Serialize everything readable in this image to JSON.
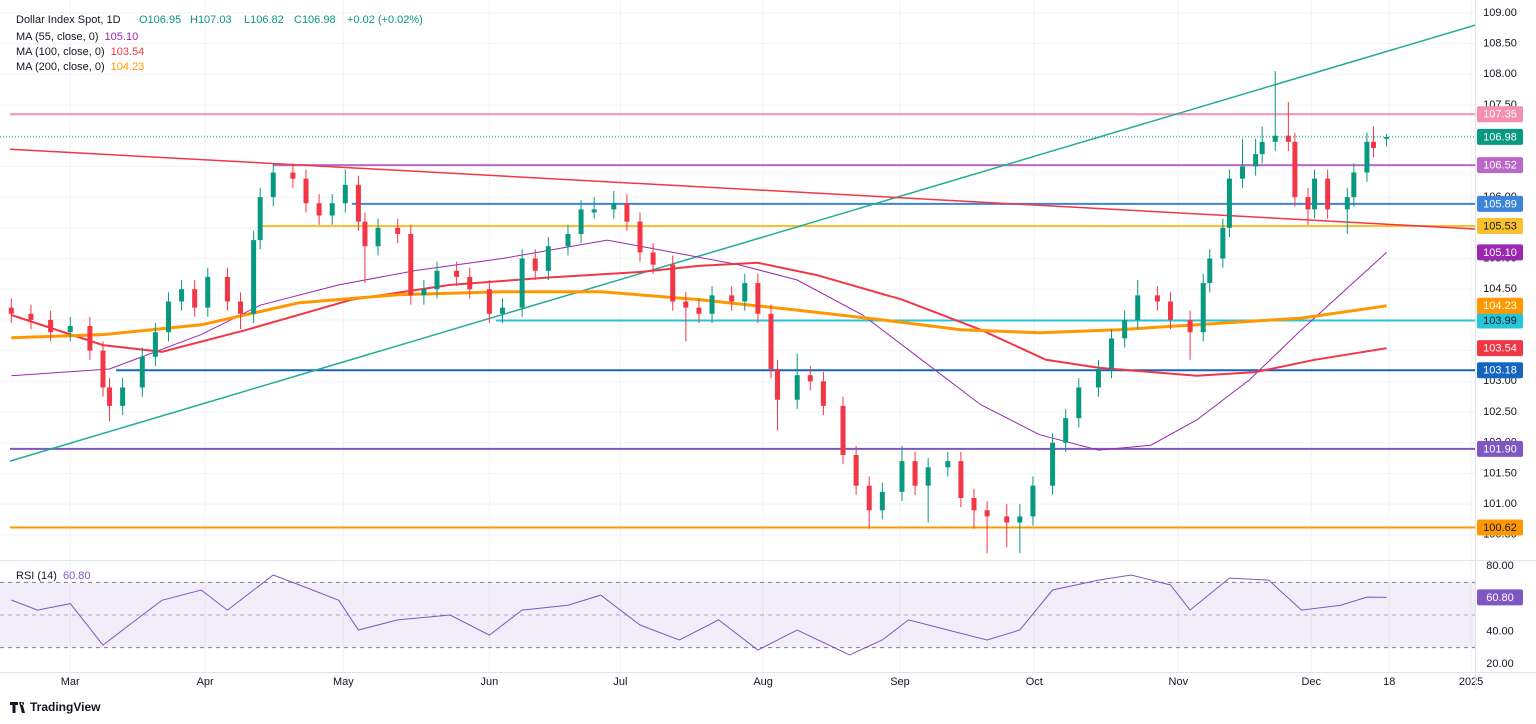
{
  "header": {
    "title": "Dollar Index Spot, 1D",
    "ohlc": [
      "O106.95",
      "H107.03",
      "L106.82",
      "C106.98",
      "+0.02 (+0.02%)"
    ]
  },
  "branding": "TradingView",
  "chart_data": [
    {
      "type": "candlestick",
      "up_color": "#089981",
      "down_color": "#f23645",
      "xlim": [
        -9.2,
        214.5
      ],
      "ylim": [
        100.09,
        109.21
      ],
      "grid": true,
      "xticks": [
        {
          "value": 0,
          "label": "Mar"
        },
        {
          "value": 20.6,
          "label": "Apr"
        },
        {
          "value": 41.7,
          "label": "May"
        },
        {
          "value": 64,
          "label": "Jun"
        },
        {
          "value": 84,
          "label": "Jul"
        },
        {
          "value": 105.8,
          "label": "Aug"
        },
        {
          "value": 126.7,
          "label": "Sep"
        },
        {
          "value": 147.2,
          "label": "Oct"
        },
        {
          "value": 169.2,
          "label": "Nov"
        },
        {
          "value": 189.5,
          "label": "Dec"
        },
        {
          "value": 201.4,
          "label": "18"
        },
        {
          "value": 213.9,
          "label": "2025"
        }
      ],
      "yticks": [
        {
          "value": 100.5,
          "label": "100.50"
        },
        {
          "value": 101,
          "label": "101.00"
        },
        {
          "value": 101.5,
          "label": "101.50"
        },
        {
          "value": 102,
          "label": "102.00"
        },
        {
          "value": 102.5,
          "label": "102.50"
        },
        {
          "value": 103,
          "label": "103.00"
        },
        {
          "value": 103.5,
          "label": "103.50"
        },
        {
          "value": 104,
          "label": "104.00"
        },
        {
          "value": 104.5,
          "label": "104.50"
        },
        {
          "value": 105,
          "label": "105.00"
        },
        {
          "value": 105.5,
          "label": "105.50"
        },
        {
          "value": 106,
          "label": "106.00"
        },
        {
          "value": 106.5,
          "label": "106.50"
        },
        {
          "value": 107,
          "label": "107.00"
        },
        {
          "value": 107.5,
          "label": "107.50"
        },
        {
          "value": 108,
          "label": "108.00"
        },
        {
          "value": 108.5,
          "label": "108.50"
        },
        {
          "value": 109,
          "label": "109.00"
        }
      ],
      "x": [
        -9,
        -6,
        -3,
        0,
        3,
        5,
        6,
        8,
        11,
        13,
        15,
        17,
        19,
        21,
        24,
        26,
        28,
        29,
        31,
        34,
        36,
        38,
        40,
        42,
        44,
        45,
        47,
        50,
        52,
        54,
        56,
        59,
        61,
        64,
        66,
        69,
        71,
        73,
        76,
        78,
        80,
        83,
        85,
        87,
        89,
        92,
        94,
        96,
        98,
        101,
        103,
        105,
        107,
        108,
        111,
        113,
        115,
        118,
        120,
        122,
        124,
        127,
        129,
        131,
        134,
        136,
        138,
        140,
        143,
        145,
        147,
        150,
        152,
        154,
        157,
        159,
        161,
        163,
        166,
        168,
        171,
        173,
        174,
        176,
        177,
        179,
        181,
        182,
        184,
        186,
        187,
        189,
        190,
        192,
        195,
        196,
        198,
        199,
        201
      ],
      "open": [
        104.2,
        104.1,
        104.0,
        103.8,
        103.9,
        103.5,
        102.9,
        102.6,
        102.9,
        103.4,
        103.8,
        104.3,
        104.5,
        104.2,
        104.7,
        104.3,
        104.1,
        105.3,
        106.0,
        106.4,
        106.3,
        105.9,
        105.7,
        105.9,
        106.2,
        105.6,
        105.2,
        105.5,
        105.4,
        104.4,
        104.5,
        104.8,
        104.7,
        104.5,
        104.1,
        104.2,
        105.0,
        104.8,
        105.2,
        105.4,
        105.75,
        105.8,
        105.9,
        105.6,
        105.1,
        104.9,
        104.3,
        104.2,
        104.1,
        104.4,
        104.3,
        104.6,
        104.1,
        103.2,
        102.7,
        103.1,
        103.0,
        102.6,
        101.8,
        101.3,
        100.9,
        101.2,
        101.7,
        101.3,
        101.6,
        101.7,
        101.1,
        100.9,
        100.8,
        100.7,
        100.8,
        101.3,
        102.0,
        102.4,
        102.9,
        103.2,
        103.7,
        104.0,
        104.4,
        104.3,
        104.0,
        103.8,
        104.6,
        105.0,
        105.5,
        106.3,
        106.5,
        106.7,
        106.9,
        107.0,
        106.9,
        106.0,
        105.8,
        106.3,
        105.8,
        106.0,
        106.4,
        106.9,
        106.95
      ],
      "high": [
        104.35,
        104.25,
        104.15,
        104.05,
        104.05,
        103.65,
        103.05,
        103.05,
        103.55,
        103.95,
        104.45,
        104.65,
        104.65,
        104.85,
        104.85,
        104.45,
        105.45,
        106.15,
        106.55,
        106.55,
        106.45,
        106.05,
        106.05,
        106.45,
        106.35,
        105.75,
        105.65,
        105.65,
        105.55,
        104.65,
        104.95,
        104.95,
        104.85,
        104.65,
        104.35,
        105.15,
        105.15,
        105.35,
        105.55,
        105.95,
        106.0,
        106.1,
        106.05,
        105.75,
        105.25,
        105.05,
        104.45,
        104.35,
        104.55,
        104.55,
        104.75,
        104.75,
        104.25,
        103.35,
        103.45,
        103.25,
        103.15,
        102.75,
        101.95,
        101.45,
        101.35,
        101.95,
        101.85,
        101.75,
        101.85,
        101.85,
        101.25,
        101.05,
        101.0,
        101.0,
        101.45,
        102.15,
        102.55,
        103.05,
        103.35,
        103.85,
        104.15,
        104.65,
        104.55,
        104.45,
        104.15,
        104.75,
        105.15,
        105.65,
        106.45,
        106.95,
        106.95,
        107.15,
        108.05,
        107.55,
        107.05,
        106.15,
        106.45,
        106.45,
        106.15,
        106.55,
        107.05,
        107.15,
        107.03
      ],
      "low": [
        103.95,
        103.85,
        103.65,
        103.65,
        103.35,
        102.75,
        102.35,
        102.45,
        102.75,
        103.25,
        103.65,
        104.15,
        104.05,
        104.05,
        104.15,
        103.85,
        103.95,
        105.15,
        105.85,
        106.15,
        105.75,
        105.55,
        105.55,
        105.75,
        105.45,
        104.6,
        105.05,
        105.25,
        104.25,
        104.25,
        104.35,
        104.55,
        104.35,
        103.95,
        103.95,
        104.05,
        104.65,
        104.65,
        105.05,
        105.25,
        105.65,
        105.65,
        105.45,
        104.95,
        104.75,
        104.15,
        103.65,
        103.95,
        103.95,
        104.15,
        104.15,
        103.95,
        103.05,
        102.2,
        102.55,
        102.85,
        102.45,
        101.65,
        101.15,
        100.6,
        100.75,
        101.05,
        101.15,
        100.7,
        101.45,
        100.95,
        100.6,
        100.2,
        100.3,
        100.2,
        100.65,
        101.15,
        101.85,
        102.25,
        102.75,
        103.05,
        103.55,
        103.85,
        104.15,
        103.85,
        103.35,
        103.65,
        104.45,
        104.85,
        105.35,
        106.15,
        106.35,
        106.55,
        106.75,
        106.75,
        105.85,
        105.55,
        105.65,
        105.65,
        105.4,
        105.85,
        106.25,
        106.65,
        106.82
      ],
      "close": [
        104.1,
        104.0,
        103.8,
        103.9,
        103.5,
        102.9,
        102.6,
        102.9,
        103.4,
        103.8,
        104.3,
        104.5,
        104.2,
        104.7,
        104.3,
        104.1,
        105.3,
        106.0,
        106.4,
        106.3,
        105.9,
        105.7,
        105.9,
        106.2,
        105.6,
        105.2,
        105.5,
        105.4,
        104.4,
        104.5,
        104.8,
        104.7,
        104.5,
        104.1,
        104.2,
        105.0,
        104.8,
        105.2,
        105.4,
        105.8,
        105.8,
        105.9,
        105.6,
        105.1,
        104.9,
        104.3,
        104.2,
        104.1,
        104.4,
        104.3,
        104.6,
        104.1,
        103.2,
        102.7,
        103.1,
        103.0,
        102.6,
        101.8,
        101.3,
        100.9,
        101.2,
        101.7,
        101.3,
        101.6,
        101.7,
        101.1,
        100.9,
        100.8,
        100.7,
        100.8,
        101.3,
        102.0,
        102.4,
        102.9,
        103.2,
        103.7,
        104.0,
        104.4,
        104.3,
        104.0,
        103.8,
        104.6,
        105.0,
        105.5,
        106.3,
        106.5,
        106.7,
        106.9,
        107.0,
        106.9,
        106.0,
        105.8,
        106.3,
        105.8,
        106.0,
        106.4,
        106.9,
        106.8,
        106.98
      ],
      "series": [
        {
          "name": "MA (55, close, 0)",
          "color": "#9c27b0",
          "width": 1,
          "x": [
            -9,
            6,
            20,
            29,
            41,
            53,
            66,
            75,
            82,
            90,
            102,
            111,
            121,
            130,
            139,
            148,
            157,
            165,
            172,
            180,
            188,
            201
          ],
          "values": [
            103.09,
            103.2,
            103.76,
            104.24,
            104.57,
            104.81,
            105.0,
            105.17,
            105.3,
            105.14,
            104.9,
            104.65,
            104.08,
            103.35,
            102.62,
            102.13,
            101.88,
            101.96,
            102.37,
            103.02,
            103.84,
            105.1
          ],
          "last": {
            "value": 105.1,
            "label": "105.10"
          }
        },
        {
          "name": "MA (100, close, 0)",
          "color": "#f23645",
          "width": 2,
          "x": [
            -9,
            5,
            14,
            27,
            43,
            58,
            73,
            87,
            96,
            105,
            114,
            127,
            139,
            149,
            157,
            172,
            181,
            190,
            201
          ],
          "values": [
            104.08,
            103.59,
            103.48,
            103.84,
            104.33,
            104.57,
            104.69,
            104.78,
            104.88,
            104.93,
            104.73,
            104.33,
            103.84,
            103.35,
            103.22,
            103.09,
            103.15,
            103.35,
            103.54
          ],
          "last": {
            "value": 103.54,
            "label": "103.54"
          }
        },
        {
          "name": "MA (200, close, 0)",
          "color": "#ff9800",
          "width": 3,
          "x": [
            -9,
            5,
            20,
            35,
            50,
            66,
            81,
            96,
            111,
            124,
            136,
            148,
            160,
            172,
            188,
            201
          ],
          "values": [
            103.71,
            103.76,
            103.92,
            104.28,
            104.41,
            104.46,
            104.46,
            104.33,
            104.16,
            104.0,
            103.84,
            103.79,
            103.84,
            103.92,
            104.03,
            104.23
          ],
          "last": {
            "value": 104.23,
            "label": "104.23"
          }
        }
      ],
      "trendlines": [
        {
          "color": "#22ab94",
          "x": [
            -9.2,
            214.5
          ],
          "y": [
            101.7,
            108.8
          ]
        },
        {
          "color": "#f23645",
          "x": [
            -9.2,
            214.5
          ],
          "y": [
            106.78,
            105.48
          ]
        }
      ],
      "levels": [
        {
          "value": 107.35,
          "color": "#f48fb1",
          "text_color": "#ffffff",
          "start": -9.2
        },
        {
          "value": 106.52,
          "color": "#ba68c8",
          "text_color": "#ffffff",
          "start": 31
        },
        {
          "value": 105.89,
          "color": "#3d85d8",
          "text_color": "#ffffff",
          "start": 43
        },
        {
          "value": 105.53,
          "color": "#fbc02d",
          "text_color": "#131722",
          "start": 29
        },
        {
          "value": 103.99,
          "color": "#26c6da",
          "text_color": "#131722",
          "start": 65
        },
        {
          "value": 103.18,
          "color": "#1565c0",
          "text_color": "#ffffff",
          "start": 7
        },
        {
          "value": 101.9,
          "value_label": "101.90",
          "color": "#7e57c2",
          "text_color": "#ffffff",
          "start": -9.2
        },
        {
          "value": 100.62,
          "color": "#ff9800",
          "text_color": "#131722",
          "start": -9.2
        }
      ],
      "last_price": {
        "value": 106.98,
        "color": "#089981"
      }
    },
    {
      "type": "line",
      "xlim": [
        -9.2,
        214.5
      ],
      "ylim": [
        15.1,
        83.7
      ],
      "yticks": [
        {
          "value": 20,
          "label": "20.00"
        },
        {
          "value": 40,
          "label": "40.00"
        },
        {
          "value": 60,
          "label": "60.00"
        },
        {
          "value": 80,
          "label": "80.00"
        }
      ],
      "bands": [
        70,
        30
      ],
      "midline": 50,
      "band_color": "#7e57c2",
      "series": [
        {
          "name": "RSI (14)",
          "color": "#7e57c2",
          "x": [
            -9,
            -5,
            0,
            5,
            9,
            14,
            20,
            24,
            31,
            35,
            41,
            44,
            50,
            58,
            64,
            69,
            76,
            81,
            87,
            93,
            99,
            105,
            111,
            119,
            124,
            128,
            134,
            140,
            145,
            150,
            157,
            162,
            168,
            171,
            177,
            183,
            188,
            194,
            198,
            201
          ],
          "values": [
            59.2,
            53,
            57,
            31.6,
            43.9,
            59,
            65.3,
            53,
            74.5,
            68.4,
            59,
            40.8,
            47,
            50,
            37.7,
            53,
            56,
            62.2,
            43.9,
            34.7,
            47,
            28.6,
            40.8,
            25.5,
            34.7,
            47,
            40.8,
            34.7,
            40.8,
            65.3,
            71.4,
            74.5,
            68.4,
            53,
            72.6,
            71.4,
            53,
            56,
            61,
            60.8
          ],
          "last": {
            "value": 60.8,
            "label": "60.80"
          }
        }
      ]
    }
  ]
}
